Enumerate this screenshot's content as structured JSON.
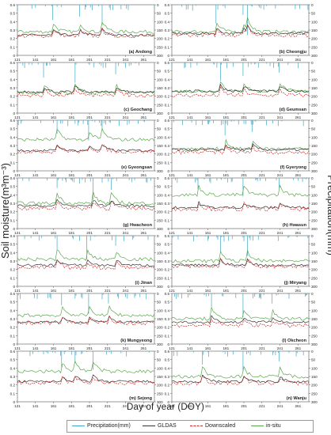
{
  "figure": {
    "y_axis_label": "Soil moisture(m³m⁻³)",
    "y2_axis_label": "Precipitation(mm)",
    "x_axis_label": "Day of year (DOY)"
  },
  "legend": [
    {
      "label": "Precipitation(mm)",
      "color": "#3fa8c8",
      "style": "solid"
    },
    {
      "label": "GLDAS",
      "color": "#333333",
      "style": "solid"
    },
    {
      "label": "Downscaled",
      "color": "#cc2a2a",
      "style": "dashed"
    },
    {
      "label": "in-situ",
      "color": "#5aa84a",
      "style": "solid"
    }
  ],
  "chart_data": {
    "type": "line",
    "subplot_count": 14,
    "x_ticks": [
      121,
      141,
      161,
      181,
      201,
      221,
      241,
      261
    ],
    "xlim": [
      121,
      273
    ],
    "y_ticks": [
      "0",
      "0.1",
      "0.2",
      "0.3",
      "0.4",
      "0.5",
      "0.6"
    ],
    "ylim": [
      0,
      0.6
    ],
    "y2_ticks": [
      "0",
      "50",
      "100",
      "150",
      "200",
      "250",
      "300"
    ],
    "y2lim": [
      0,
      300
    ],
    "y2_inverted": true,
    "panels": [
      {
        "label": "(a) Andong",
        "gldas": 0.24,
        "down": 0.23,
        "insitu": 0.28,
        "rain": [
          [
            160,
            90
          ],
          [
            190,
            70
          ],
          [
            215,
            120
          ]
        ]
      },
      {
        "label": "(b) Cheongju",
        "gldas": 0.26,
        "down": 0.24,
        "insitu": 0.28,
        "rain": [
          [
            170,
            110
          ],
          [
            200,
            60
          ],
          [
            205,
            180
          ]
        ]
      },
      {
        "label": "(c) Geochang",
        "gldas": 0.25,
        "down": 0.21,
        "insitu": 0.24,
        "rain": [
          [
            150,
            90
          ],
          [
            185,
            120
          ],
          [
            230,
            70
          ]
        ]
      },
      {
        "label": "(d) Geumsan",
        "gldas": 0.26,
        "down": 0.21,
        "insitu": 0.26,
        "rain": [
          [
            175,
            110
          ],
          [
            200,
            80
          ],
          [
            240,
            60
          ]
        ]
      },
      {
        "label": "(e) Gyeongsan",
        "gldas": 0.24,
        "down": 0.23,
        "insitu": 0.37,
        "rain": [
          [
            165,
            80
          ],
          [
            200,
            120
          ],
          [
            215,
            60
          ]
        ]
      },
      {
        "label": "(f) Gyeryong",
        "gldas": 0.25,
        "down": 0.22,
        "insitu": 0.26,
        "rain": [
          [
            180,
            90
          ],
          [
            210,
            70
          ]
        ]
      },
      {
        "label": "(g) Hwacheon",
        "gldas": 0.27,
        "down": 0.24,
        "insitu": 0.3,
        "rain": [
          [
            165,
            60
          ],
          [
            205,
            130
          ],
          [
            225,
            70
          ]
        ]
      },
      {
        "label": "(h) Hwasun",
        "gldas": 0.25,
        "down": 0.23,
        "insitu": 0.4,
        "rain": [
          [
            150,
            70
          ],
          [
            200,
            110
          ],
          [
            240,
            60
          ]
        ]
      },
      {
        "label": "(i) Jinan",
        "gldas": 0.25,
        "down": 0.22,
        "insitu": 0.32,
        "rain": [
          [
            165,
            80
          ],
          [
            198,
            140
          ],
          [
            230,
            60
          ]
        ]
      },
      {
        "label": "(j) Miryang",
        "gldas": 0.25,
        "down": 0.24,
        "insitu": 0.3,
        "rain": [
          [
            175,
            100
          ],
          [
            205,
            120
          ]
        ]
      },
      {
        "label": "(k) Mungyeong",
        "gldas": 0.26,
        "down": 0.25,
        "insitu": 0.34,
        "rain": [
          [
            170,
            70
          ],
          [
            200,
            120
          ],
          [
            222,
            60
          ]
        ]
      },
      {
        "label": "(l) Okcheon",
        "gldas": 0.26,
        "down": 0.22,
        "insitu": 0.3,
        "rain": [
          [
            165,
            80
          ],
          [
            200,
            140
          ],
          [
            232,
            60
          ]
        ]
      },
      {
        "label": "(m) Sejong",
        "gldas": 0.24,
        "down": 0.22,
        "insitu": 0.36,
        "rain": [
          [
            170,
            100
          ],
          [
            185,
            70
          ],
          [
            205,
            110
          ]
        ]
      },
      {
        "label": "(n) Wanju",
        "gldas": 0.24,
        "down": 0.22,
        "insitu": 0.3,
        "rain": [
          [
            155,
            80
          ],
          [
            200,
            120
          ],
          [
            240,
            60
          ]
        ]
      }
    ]
  }
}
